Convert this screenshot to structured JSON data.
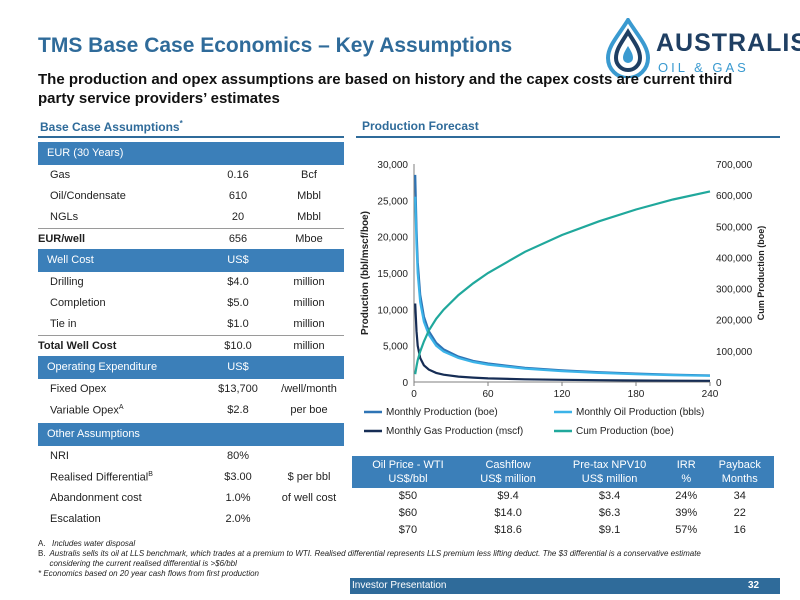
{
  "title": "TMS Base Case Economics – Key Assumptions",
  "subtitle": "The production and opex assumptions are based on history and the capex costs are current third party service providers’ estimates",
  "logo": {
    "line1": "AUSTRALIS",
    "line2": "OIL & GAS",
    "colors": {
      "dark": "#1f3f63",
      "light": "#3a9ad0"
    }
  },
  "assumptions": {
    "heading": "Base Case Assumptions",
    "heading_sup": "*",
    "eur": {
      "band": "EUR (30 Years)",
      "rows": [
        {
          "label": "Gas",
          "value": "0.16",
          "unit": "Bcf"
        },
        {
          "label": "Oil/Condensate",
          "value": "610",
          "unit": "Mbbl"
        },
        {
          "label": "NGLs",
          "value": "20",
          "unit": "Mbbl"
        }
      ],
      "total": {
        "label": "EUR/well",
        "value": "656",
        "unit": "Mboe"
      }
    },
    "well_cost": {
      "band": "Well Cost",
      "band_unit": "US$",
      "rows": [
        {
          "label": "Drilling",
          "value": "$4.0",
          "unit": "million"
        },
        {
          "label": "Completion",
          "value": "$5.0",
          "unit": "million"
        },
        {
          "label": "Tie in",
          "value": "$1.0",
          "unit": "million"
        }
      ],
      "total": {
        "label": "Total Well Cost",
        "value": "$10.0",
        "unit": "million"
      }
    },
    "opex": {
      "band": "Operating Expenditure",
      "band_unit": "US$",
      "rows": [
        {
          "label": "Fixed Opex",
          "value": "$13,700",
          "unit": "/well/month"
        },
        {
          "label": "Variable Opex",
          "sup": "A",
          "value": "$2.8",
          "unit": "per boe"
        }
      ]
    },
    "other": {
      "band": "Other Assumptions",
      "rows": [
        {
          "label": "NRI",
          "value": "80%",
          "unit": ""
        },
        {
          "label": "Realised Differential",
          "sup": "B",
          "value": "$3.00",
          "unit": "$ per bbl"
        },
        {
          "label": "Abandonment cost",
          "value": "1.0%",
          "unit": "of well cost"
        },
        {
          "label": "Escalation",
          "value": "2.0%",
          "unit": ""
        }
      ]
    }
  },
  "forecast_heading": "Production Forecast",
  "chart_data": {
    "type": "line",
    "title": "",
    "xlabel": "",
    "ylabel": "Production (bbl/mscf/boe)",
    "y2label": "Cum Production (boe)",
    "xlim": [
      0,
      240
    ],
    "ylim": [
      0,
      30000
    ],
    "y2lim": [
      0,
      700000
    ],
    "x_ticks": [
      "0",
      "60",
      "120",
      "180",
      "240"
    ],
    "y_ticks": [
      "0",
      "5,000",
      "10,000",
      "15,000",
      "20,000",
      "25,000",
      "30,000"
    ],
    "y2_ticks": [
      "0",
      "100,000",
      "200,000",
      "300,000",
      "400,000",
      "500,000",
      "600,000",
      "700,000"
    ],
    "grid": false,
    "legend": "bottom",
    "x": [
      1,
      2,
      3,
      5,
      8,
      12,
      18,
      24,
      36,
      48,
      60,
      90,
      120,
      150,
      180,
      210,
      240
    ],
    "series": [
      {
        "name": "Monthly Production (boe)",
        "axis": "left",
        "color": "#2e74b5",
        "values": [
          28500,
          21000,
          16500,
          12000,
          9000,
          7000,
          5400,
          4500,
          3500,
          2900,
          2550,
          1950,
          1600,
          1350,
          1150,
          1000,
          900
        ]
      },
      {
        "name": "Monthly Oil Production (bbls)",
        "axis": "left",
        "color": "#3bb3e8",
        "values": [
          25500,
          19000,
          15000,
          11000,
          8300,
          6500,
          5000,
          4200,
          3300,
          2750,
          2400,
          1850,
          1500,
          1250,
          1080,
          950,
          850
        ]
      },
      {
        "name": "Monthly Gas Production (mscf)",
        "axis": "left",
        "color": "#162d55",
        "values": [
          10800,
          7000,
          5000,
          3300,
          2300,
          1700,
          1250,
          1000,
          750,
          600,
          500,
          370,
          300,
          250,
          210,
          180,
          160
        ]
      },
      {
        "name": "Cum Production (boe)",
        "axis": "right",
        "color": "#20a89c",
        "values": [
          25000,
          50000,
          70000,
          98000,
          130000,
          165000,
          203000,
          232000,
          279000,
          317000,
          350000,
          418000,
          472000,
          516000,
          554000,
          586000,
          612000
        ]
      }
    ]
  },
  "economics": {
    "headers": [
      [
        "Oil Price - WTI",
        "US$/bbl"
      ],
      [
        "Cashflow",
        "US$ million"
      ],
      [
        "Pre-tax NPV10",
        "US$ million"
      ],
      [
        "IRR",
        "%"
      ],
      [
        "Payback",
        "Months"
      ]
    ],
    "rows": [
      [
        "$50",
        "$9.4",
        "$3.4",
        "24%",
        "34"
      ],
      [
        "$60",
        "$14.0",
        "$6.3",
        "39%",
        "22"
      ],
      [
        "$70",
        "$18.6",
        "$9.1",
        "57%",
        "16"
      ]
    ]
  },
  "notes": [
    {
      "key": "A.",
      "text": "Includes water disposal"
    },
    {
      "key": "B.",
      "text": "Australis sells its oil at LLS benchmark, which trades at a premium to WTI. Realised differential represents LLS premium less lifting deduct. The $3 differential is a conservative estimate considering the current realised differential is >$6/bbl"
    },
    {
      "key": "",
      "text": "* Economics based on 20 year cash flows from first production"
    }
  ],
  "footer": {
    "label": "Investor Presentation",
    "page": "32"
  }
}
